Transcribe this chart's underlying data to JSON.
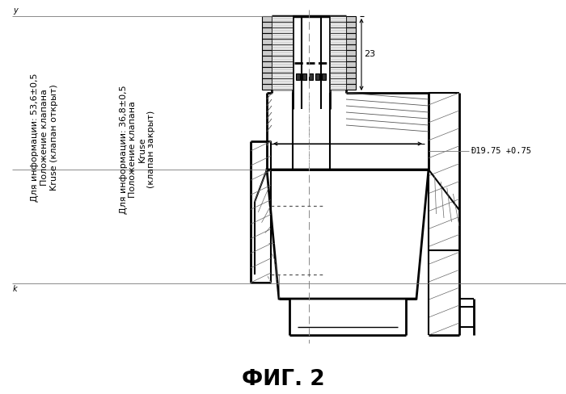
{
  "title": "ФИГ. 2",
  "bg_color": "#ffffff",
  "lc": "#000000",
  "ann1": "Для информации: 53,6±0,5\nПоложение клапана\nKruse (клапан открыт)",
  "ann2": "Для информации: 36,8±0,5\nПоложение клапана\nKruse\n(клапан закрыт)",
  "dim23": "23",
  "dim_dia": "Ð19.75 +0.75",
  "lbl_y": "y",
  "lbl_k": "k"
}
